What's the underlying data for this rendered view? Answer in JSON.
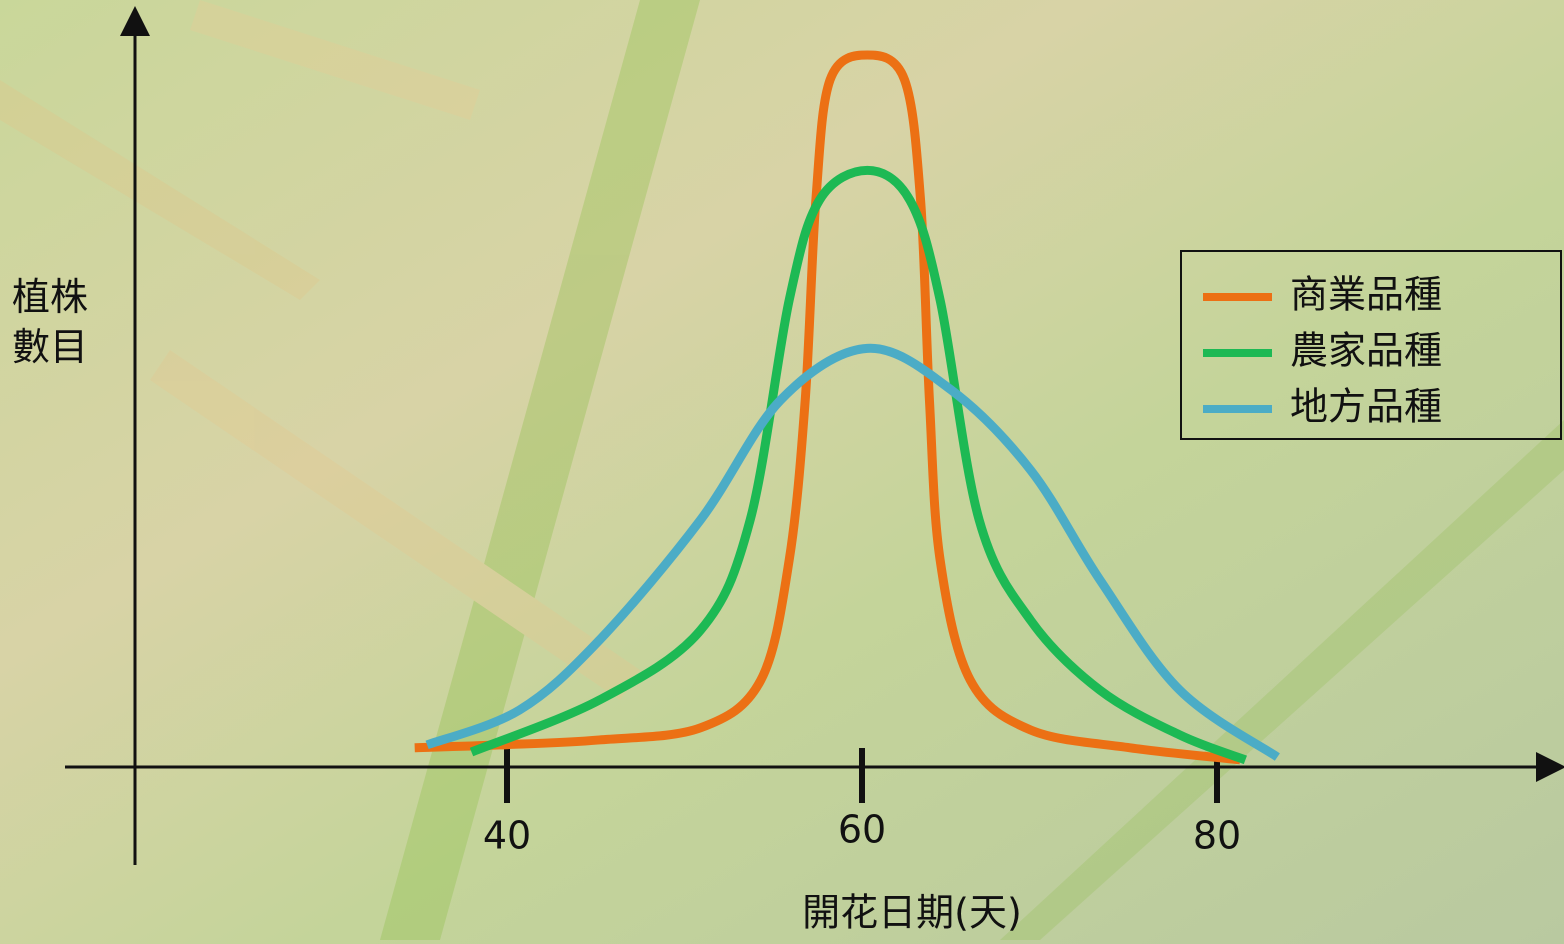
{
  "chart_data": {
    "type": "line",
    "x_label": "開花日期(天)",
    "y_label": "植株數目",
    "xlim": [
      15,
      98
    ],
    "ylim": [
      0,
      105
    ],
    "xticks": [
      40,
      60,
      80
    ],
    "legend": "upper right",
    "series": [
      {
        "name": "商業品種",
        "color": "#ec7014",
        "x": [
          34.8,
          39.6,
          45.2,
          50.9,
          54.3,
          55.9,
          56.8,
          57.4,
          58.2,
          60.3,
          62.4,
          63.3,
          63.8,
          64.4,
          66.1,
          69.5,
          75.1,
          81.3
        ],
        "values": [
          2.7,
          3.1,
          3.8,
          5.5,
          12.2,
          29.1,
          51.5,
          79.6,
          96.5,
          100,
          96.5,
          79.6,
          51.5,
          29.1,
          12.2,
          5.2,
          2.7,
          1.0
        ]
      },
      {
        "name": "農家品種",
        "color": "#1db954",
        "x": [
          38.0,
          45.2,
          50.9,
          53.7,
          55.9,
          57.6,
          60.3,
          62.7,
          64.4,
          66.6,
          69.5,
          73.4,
          77.9,
          81.6
        ],
        "values": [
          2.1,
          9.4,
          19.2,
          34.7,
          65.6,
          79.6,
          83.8,
          79.6,
          65.6,
          34.7,
          20.6,
          10.8,
          4.5,
          1.0
        ]
      },
      {
        "name": "地方品種",
        "color": "#4bacc6",
        "x": [
          35.5,
          40.7,
          45.2,
          50.9,
          55.4,
          60.3,
          65.0,
          69.5,
          73.4,
          77.9,
          83.4
        ],
        "values": [
          3.1,
          8.0,
          17.8,
          34.7,
          51.5,
          58.8,
          53.0,
          41.7,
          26.3,
          10.8,
          1.4
        ]
      }
    ]
  }
}
